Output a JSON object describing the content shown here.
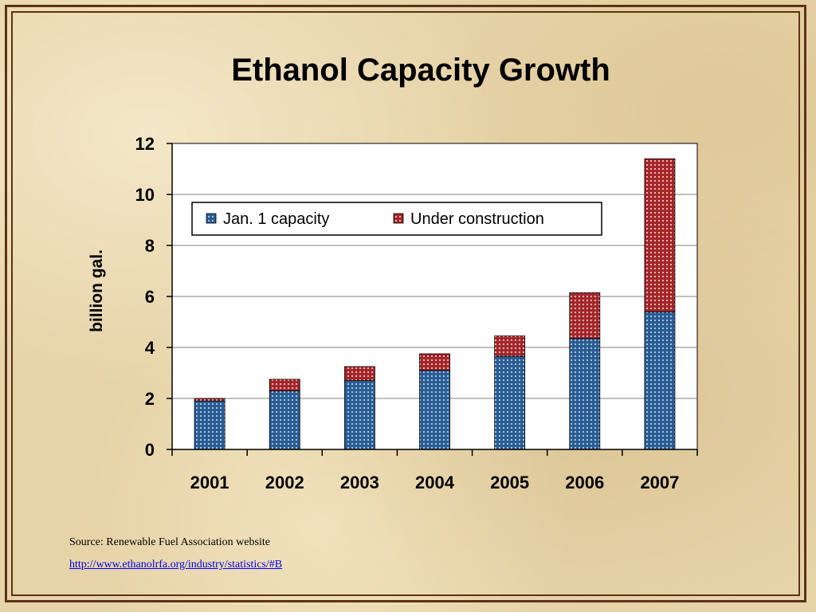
{
  "slide": {
    "source_text": "Source: Renewable Fuel Association website",
    "source_link": "http://www.ethanolrfa.org/industry/statistics/#B"
  },
  "colors": {
    "jan_capacity": "#2a5d93",
    "under_construction": "#a3262a",
    "frame": "#5a3415"
  },
  "chart_data": {
    "type": "bar",
    "stacked": true,
    "title": "Ethanol Capacity Growth",
    "xlabel": "",
    "ylabel": "billion gal.",
    "categories": [
      "2001",
      "2002",
      "2003",
      "2004",
      "2005",
      "2006",
      "2007"
    ],
    "series": [
      {
        "name": "Jan. 1 capacity",
        "values": [
          1.9,
          2.3,
          2.7,
          3.1,
          3.65,
          4.35,
          5.4
        ]
      },
      {
        "name": "Under construction",
        "values": [
          0.1,
          0.45,
          0.55,
          0.65,
          0.8,
          1.8,
          6.0
        ]
      }
    ],
    "ylim": [
      0,
      12
    ],
    "yticks": [
      "0",
      "2",
      "4",
      "6",
      "8",
      "10",
      "12"
    ],
    "grid": true,
    "legend": "top-center"
  }
}
